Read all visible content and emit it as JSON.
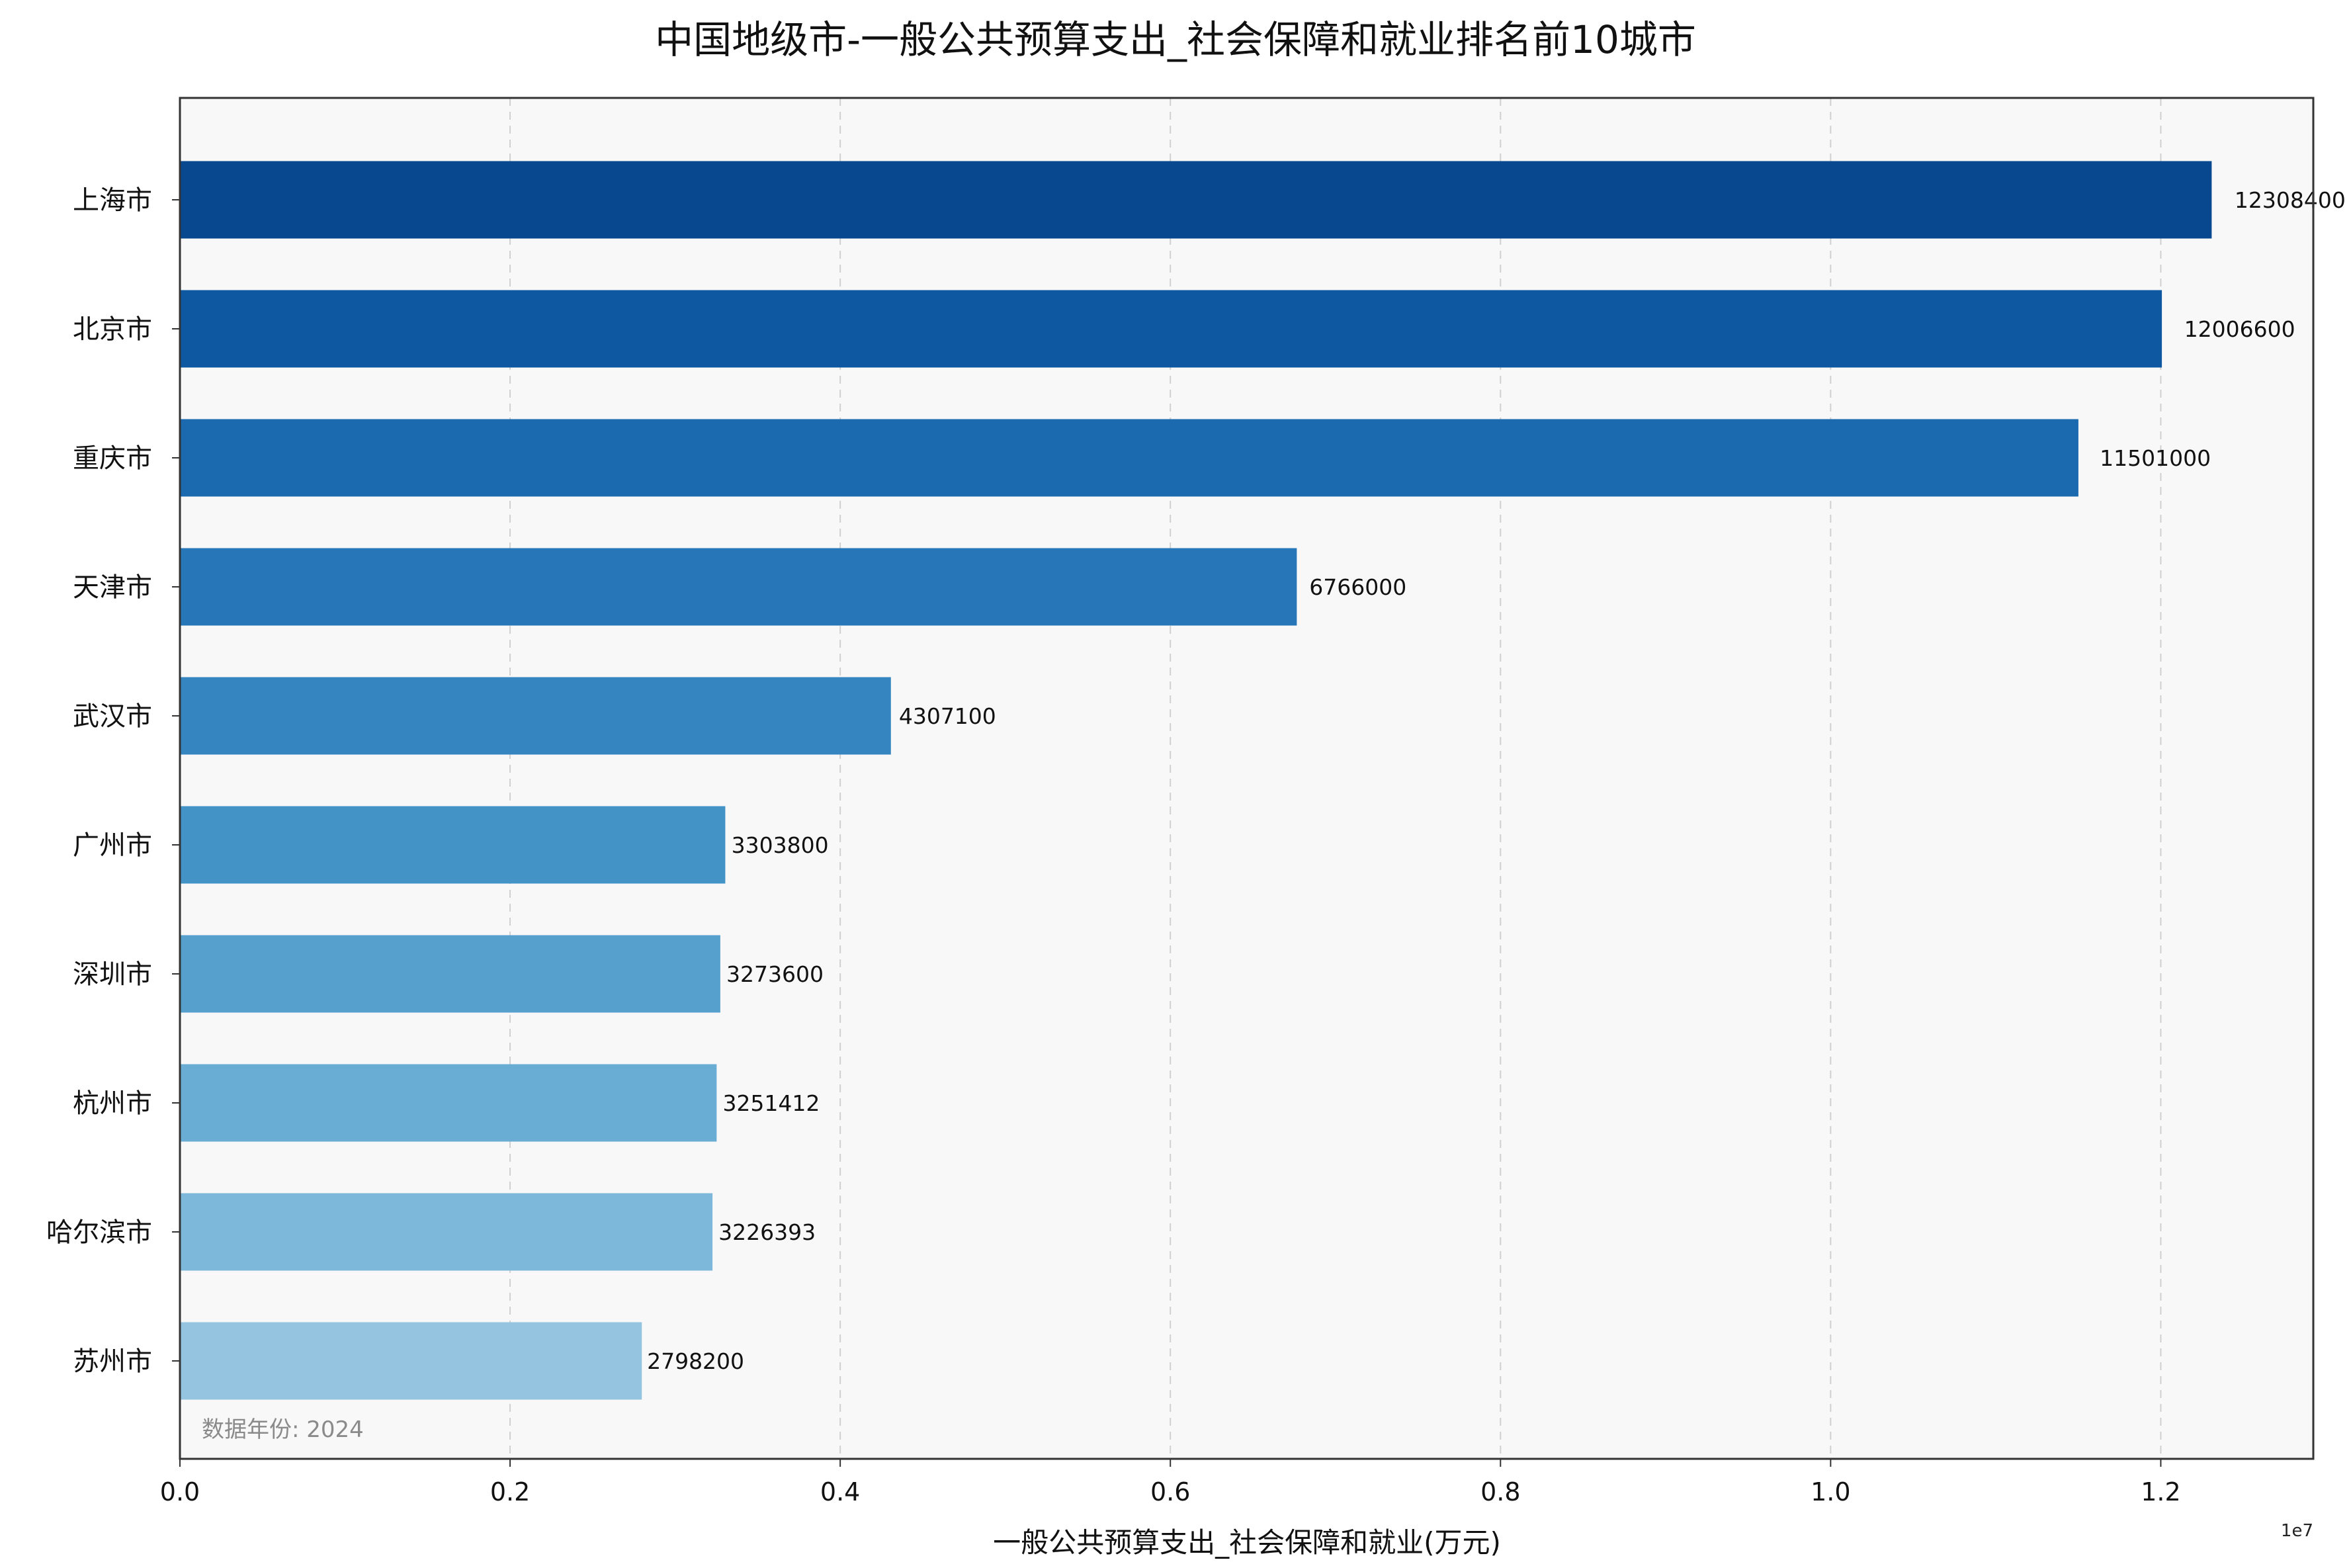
{
  "chart_data": {
    "type": "bar",
    "orientation": "horizontal",
    "title": "中国地级市-一般公共预算支出_社会保障和就业排名前10城市",
    "xlabel": "一般公共预算支出_社会保障和就业(万元)",
    "ylabel": "",
    "x_exponent_label": "1e7",
    "categories": [
      "上海市",
      "北京市",
      "重庆市",
      "天津市",
      "武汉市",
      "广州市",
      "深圳市",
      "杭州市",
      "哈尔滨市",
      "苏州市"
    ],
    "values": [
      12308400,
      12006600,
      11501000,
      6766000,
      4307100,
      3303800,
      3273600,
      3251412,
      3226393,
      2798200
    ],
    "value_labels": [
      "12308400",
      "12006600",
      "11501000",
      "6766000",
      "4307100",
      "3303800",
      "3273600",
      "3251412",
      "3226393",
      "2798200"
    ],
    "colors": [
      "#08488e",
      "#0e58a2",
      "#1b69af",
      "#2676b8",
      "#3585c0",
      "#4493c7",
      "#56a0ce",
      "#69add5",
      "#7db8da",
      "#94c4df"
    ],
    "xlim": [
      0,
      12924000
    ],
    "xticks": [
      0,
      2000000,
      4000000,
      6000000,
      8000000,
      10000000,
      12000000
    ],
    "xtick_labels": [
      "0.0",
      "0.2",
      "0.4",
      "0.6",
      "0.8",
      "1.0",
      "1.2"
    ],
    "grid": "x-dashed",
    "note": "数据年份: 2024"
  }
}
